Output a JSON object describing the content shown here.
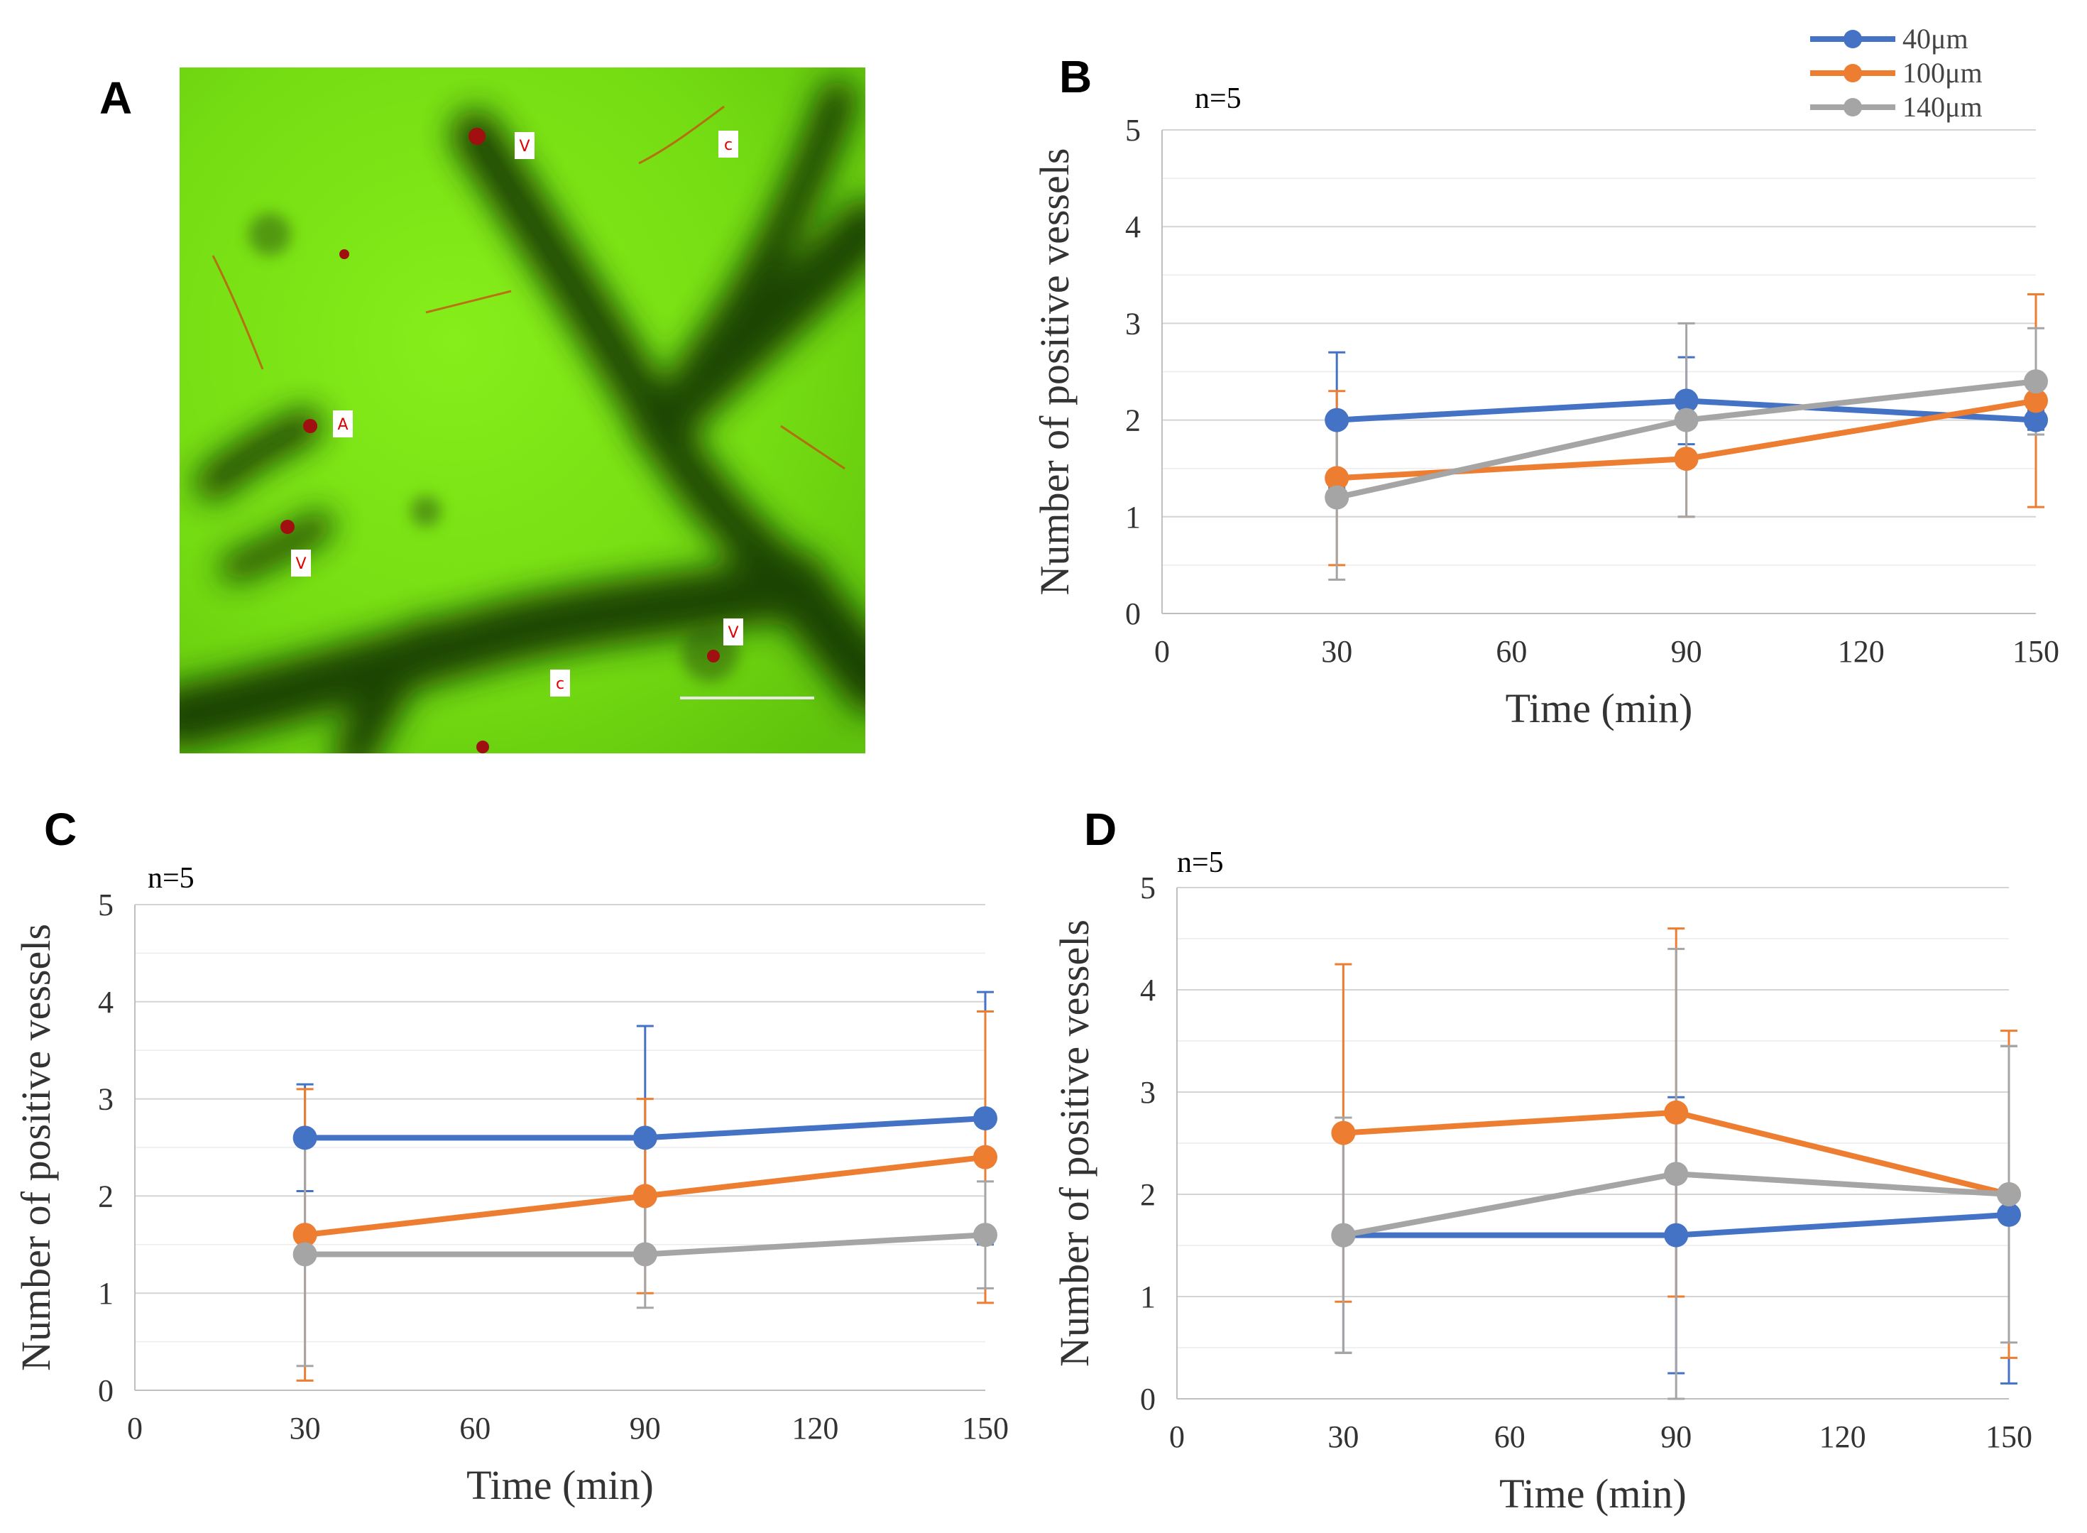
{
  "panel_a": {
    "letter": "A",
    "labels": [
      "V",
      "c",
      "A",
      "V",
      "V",
      "c"
    ]
  },
  "legend": {
    "entries": [
      {
        "name": "40μm",
        "color": "#4472C4"
      },
      {
        "name": "100μm",
        "color": "#ED7D31"
      },
      {
        "name": "140μm",
        "color": "#A5A5A5"
      }
    ]
  },
  "chart_data": [
    {
      "panel": "B",
      "type": "line",
      "annotation": "n=5",
      "xlabel": "Time (min)",
      "ylabel": "Number of positive vessels",
      "xlim": [
        0,
        150
      ],
      "ylim": [
        0,
        5
      ],
      "xticks": [
        "0",
        "30",
        "60",
        "90",
        "120",
        "150"
      ],
      "yticks": [
        "0",
        "1",
        "2",
        "3",
        "4",
        "5"
      ],
      "x": [
        30,
        90,
        150
      ],
      "series": [
        {
          "name": "40μm",
          "color": "#4472C4",
          "values": [
            2.0,
            2.2,
            2.0
          ],
          "err": [
            0.7,
            0.45,
            0.1
          ]
        },
        {
          "name": "100μm",
          "color": "#ED7D31",
          "values": [
            1.4,
            1.6,
            2.2
          ],
          "err": [
            0.9,
            0.6,
            1.1
          ]
        },
        {
          "name": "140μm",
          "color": "#A5A5A5",
          "values": [
            1.2,
            2.0,
            2.4
          ],
          "err": [
            0.85,
            1.0,
            0.55
          ]
        }
      ]
    },
    {
      "panel": "C",
      "type": "line",
      "annotation": "n=5",
      "xlabel": "Time (min)",
      "ylabel": "Number of positive vessels",
      "xlim": [
        0,
        150
      ],
      "ylim": [
        0,
        5
      ],
      "xticks": [
        "0",
        "30",
        "60",
        "90",
        "120",
        "150"
      ],
      "yticks": [
        "0",
        "1",
        "2",
        "3",
        "4",
        "5"
      ],
      "x": [
        30,
        90,
        150
      ],
      "series": [
        {
          "name": "40μm",
          "color": "#4472C4",
          "values": [
            2.6,
            2.6,
            2.8
          ],
          "err": [
            0.55,
            1.15,
            1.3
          ]
        },
        {
          "name": "100μm",
          "color": "#ED7D31",
          "values": [
            1.6,
            2.0,
            2.4
          ],
          "err": [
            1.5,
            1.0,
            1.5
          ]
        },
        {
          "name": "140μm",
          "color": "#A5A5A5",
          "values": [
            1.4,
            1.4,
            1.6
          ],
          "err": [
            1.15,
            0.55,
            0.55
          ]
        }
      ]
    },
    {
      "panel": "D",
      "type": "line",
      "annotation": "n=5",
      "xlabel": "Time (min)",
      "ylabel": "Number of positive vessels",
      "xlim": [
        0,
        150
      ],
      "ylim": [
        0,
        5
      ],
      "xticks": [
        "0",
        "30",
        "60",
        "90",
        "120",
        "150"
      ],
      "yticks": [
        "0",
        "1",
        "2",
        "3",
        "4",
        "5"
      ],
      "x": [
        30,
        90,
        150
      ],
      "series": [
        {
          "name": "40μm",
          "color": "#4472C4",
          "values": [
            1.6,
            1.6,
            1.8
          ],
          "err": [
            1.15,
            1.35,
            1.65
          ]
        },
        {
          "name": "100μm",
          "color": "#ED7D31",
          "values": [
            2.6,
            2.8,
            2.0
          ],
          "err": [
            1.65,
            1.8,
            1.6
          ]
        },
        {
          "name": "140μm",
          "color": "#A5A5A5",
          "values": [
            1.6,
            2.2,
            2.0
          ],
          "err": [
            1.15,
            2.2,
            1.45
          ]
        }
      ]
    }
  ]
}
